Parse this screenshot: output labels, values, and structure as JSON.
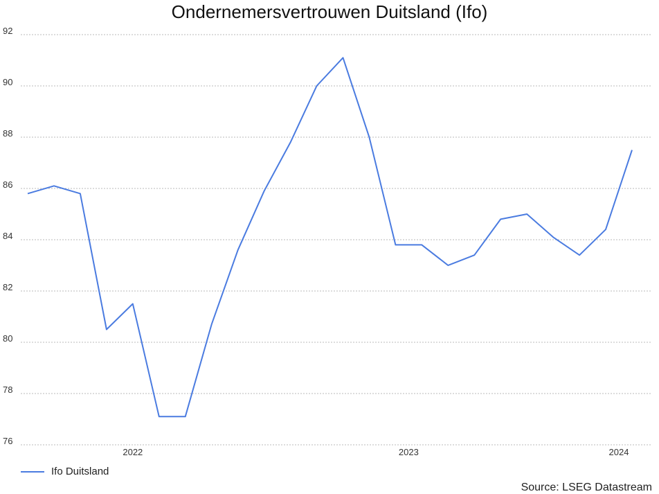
{
  "chart_data": {
    "type": "line",
    "title": "Ondernemersvertrouwen Duitsland (Ifo)",
    "xlabel": "",
    "ylabel": "",
    "ylim": [
      76,
      92
    ],
    "yticks": [
      76,
      78,
      80,
      82,
      84,
      86,
      88,
      90,
      92
    ],
    "x_tick_labels": [
      {
        "label": "2022",
        "index": 4
      },
      {
        "label": "2023",
        "index": 14.5
      },
      {
        "label": "2024",
        "index": 22.5
      }
    ],
    "grid": true,
    "legend_position": "bottom-left",
    "series": [
      {
        "name": "Ifo Duitsland",
        "color": "#4a7be0",
        "values": [
          85.8,
          86.1,
          85.8,
          80.5,
          81.5,
          77.1,
          77.1,
          80.7,
          83.6,
          85.9,
          87.8,
          90.0,
          91.1,
          88.0,
          83.8,
          83.8,
          83.0,
          83.4,
          84.8,
          85.0,
          84.1,
          83.4,
          84.4,
          87.5
        ]
      }
    ]
  },
  "source": "Source: LSEG Datastream"
}
